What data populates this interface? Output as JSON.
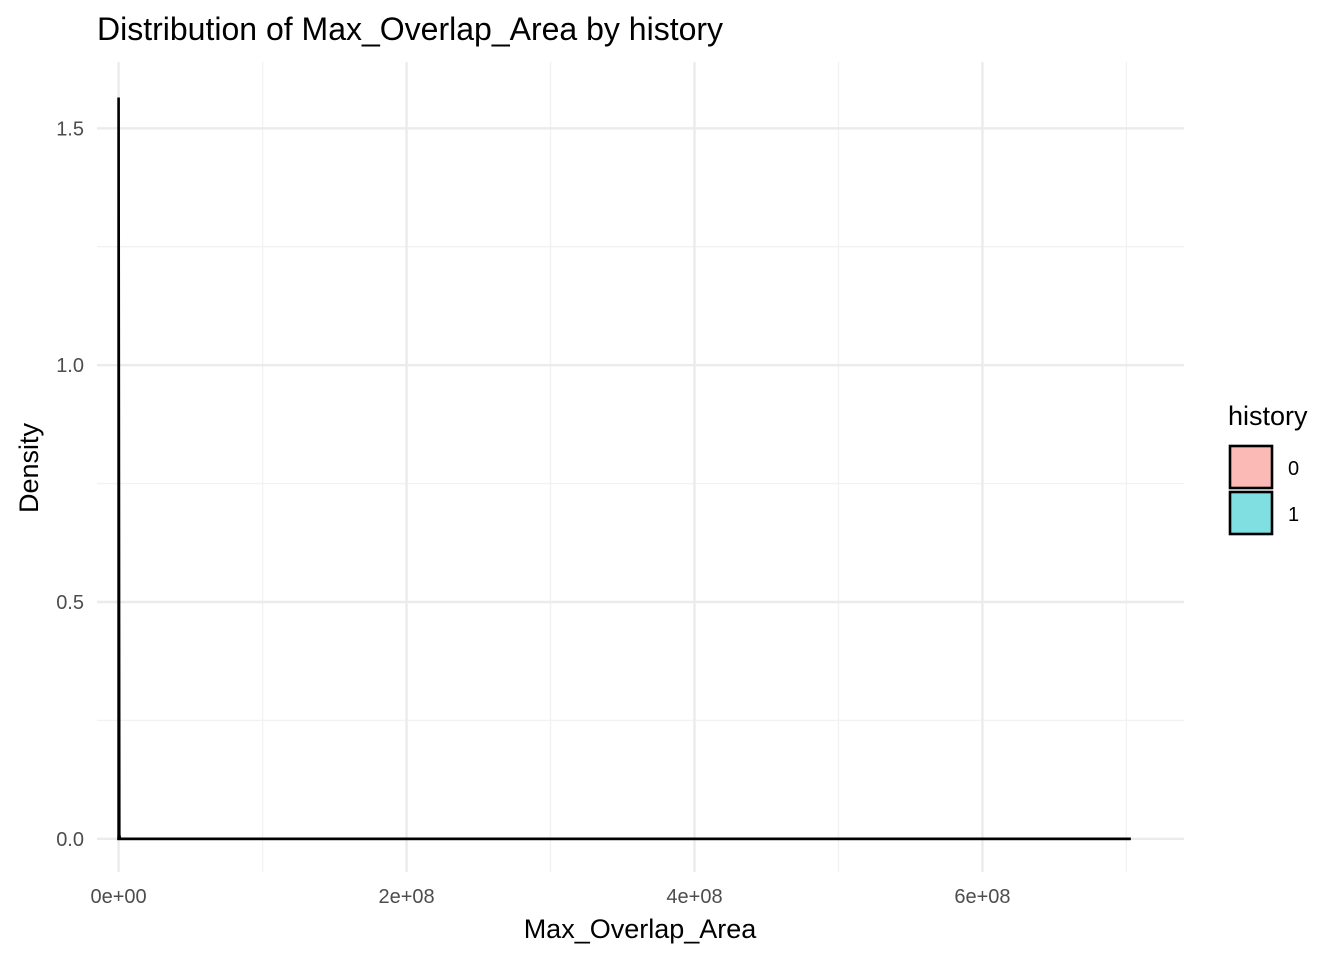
{
  "chart_data": {
    "type": "area",
    "title": "Distribution of Max_Overlap_Area by history",
    "xlabel": "Max_Overlap_Area",
    "ylabel": "Density",
    "xlim": [
      -15000000.0,
      740000000.0
    ],
    "ylim": [
      -0.07,
      1.64
    ],
    "x_ticks": [
      0,
      200000000,
      400000000,
      600000000
    ],
    "x_tick_labels": [
      "0e+00",
      "2e+08",
      "4e+08",
      "6e+08"
    ],
    "x_minor_ticks": [
      100000000,
      300000000,
      500000000,
      700000000
    ],
    "y_ticks": [
      0,
      0.5,
      1.0,
      1.5
    ],
    "y_tick_labels": [
      "0.0",
      "0.5",
      "1.0",
      "1.5"
    ],
    "y_minor_ticks": [
      0.25,
      0.75,
      1.25
    ],
    "grid": true,
    "legend": {
      "title": "history",
      "position": "right",
      "entries": [
        {
          "label": "0",
          "color": "#F8766D"
        },
        {
          "label": "1",
          "color": "#00BFC4"
        }
      ]
    },
    "series": [
      {
        "name": "0",
        "color": "#F8766D",
        "x": [
          0,
          200000,
          1000000,
          5000000,
          100000000,
          200000000,
          300000000,
          400000000,
          500000000,
          600000000,
          703000000
        ],
        "y": [
          0.0,
          0.012,
          0.0,
          0.0,
          0,
          0,
          0,
          0,
          0,
          0,
          0
        ]
      },
      {
        "name": "1",
        "color": "#00BFC4",
        "x": [
          0,
          100000,
          500000,
          1000000,
          100000000,
          200000000,
          300000000,
          400000000,
          500000000,
          600000000,
          703000000
        ],
        "y": [
          1.565,
          1.2,
          0.0,
          0.0,
          0,
          0,
          0,
          0,
          0,
          0,
          0
        ]
      }
    ]
  }
}
